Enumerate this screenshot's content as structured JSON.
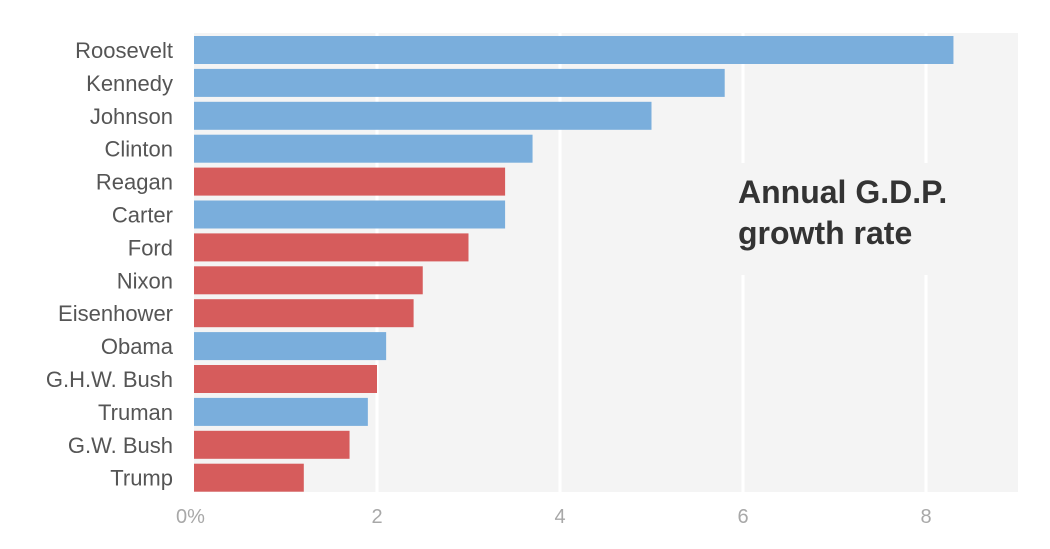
{
  "chart_data": {
    "type": "bar",
    "orientation": "horizontal",
    "categories": [
      "Roosevelt",
      "Kennedy",
      "Johnson",
      "Clinton",
      "Reagan",
      "Carter",
      "Ford",
      "Nixon",
      "Eisenhower",
      "Obama",
      "G.H.W. Bush",
      "Truman",
      "G.W. Bush",
      "Trump"
    ],
    "values": [
      8.3,
      5.8,
      5.0,
      3.7,
      3.4,
      3.4,
      3.0,
      2.5,
      2.4,
      2.1,
      2.0,
      1.9,
      1.7,
      1.2
    ],
    "party": [
      "democrat",
      "democrat",
      "democrat",
      "democrat",
      "republican",
      "democrat",
      "republican",
      "republican",
      "republican",
      "democrat",
      "republican",
      "democrat",
      "republican",
      "republican"
    ],
    "annotation": [
      "Annual G.D.P.",
      "growth rate"
    ],
    "xlim": [
      0,
      9
    ],
    "xticks": [
      0,
      2,
      4,
      6,
      8
    ],
    "xtick_labels": [
      "0%",
      "2",
      "4",
      "6",
      "8"
    ],
    "grid": true,
    "colors": {
      "democrat": "#7aaedc",
      "republican": "#d65c5c",
      "plot_background": "#f4f4f4",
      "gridline": "#ffffff"
    }
  }
}
